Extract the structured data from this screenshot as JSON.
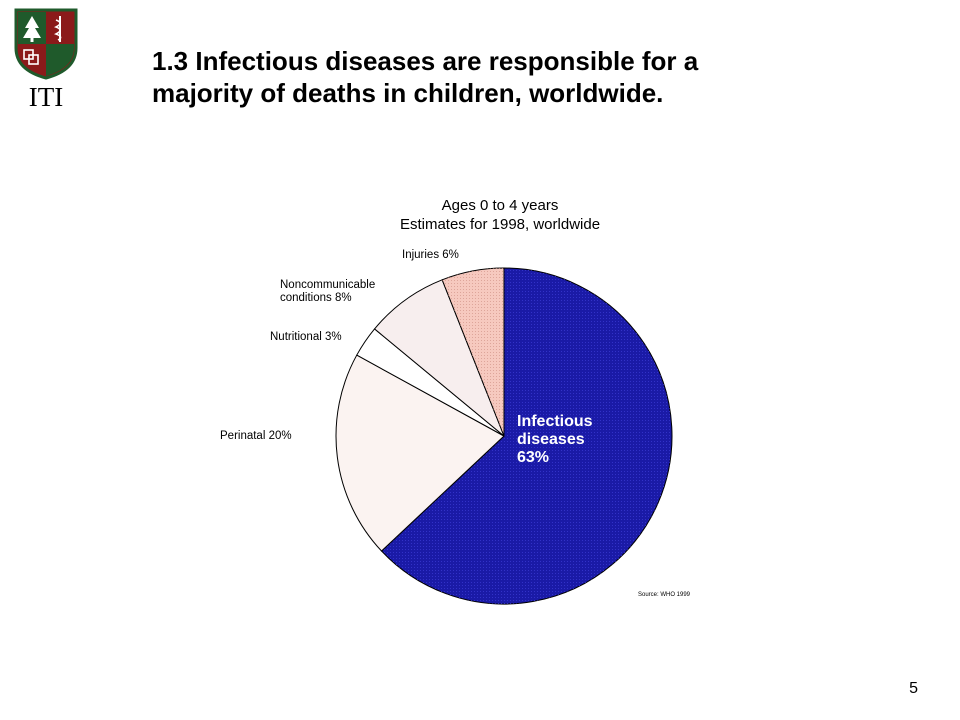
{
  "logo": {
    "text": "ITI",
    "colors": {
      "shield_red": "#8b1a1a",
      "shield_green": "#1f5a2b",
      "emblem_white": "#ffffff"
    },
    "icons": [
      "tree-icon",
      "caduceus-icon",
      "cross-blocks-icon"
    ]
  },
  "slide": {
    "title_line1": "1.3 Infectious diseases are responsible for a",
    "title_line2": "majority of deaths in children, worldwide.",
    "page_number": "5"
  },
  "chart_data": {
    "type": "pie",
    "title_line1": "Ages 0 to 4 years",
    "title_line2": "Estimates for 1998, worldwide",
    "source": "Source: WHO 1999",
    "slices": [
      {
        "key": "infectious",
        "label_lines": [
          "Infectious",
          "diseases",
          "63%"
        ],
        "value": 63,
        "color": "#1a1aa6"
      },
      {
        "key": "perinatal",
        "label_lines": [
          "Perinatal 20%"
        ],
        "value": 20,
        "color": "#fbf3f1"
      },
      {
        "key": "nutritional",
        "label_lines": [
          "Nutritional 3%"
        ],
        "value": 3,
        "color": "#ffffff"
      },
      {
        "key": "noncommunicable",
        "label_lines": [
          "Noncommunicable",
          "conditions 8%"
        ],
        "value": 8,
        "color": "#f7eeee"
      },
      {
        "key": "injuries",
        "label_lines": [
          "Injuries 6%"
        ],
        "value": 6,
        "color": "#f6c9bf"
      }
    ]
  }
}
